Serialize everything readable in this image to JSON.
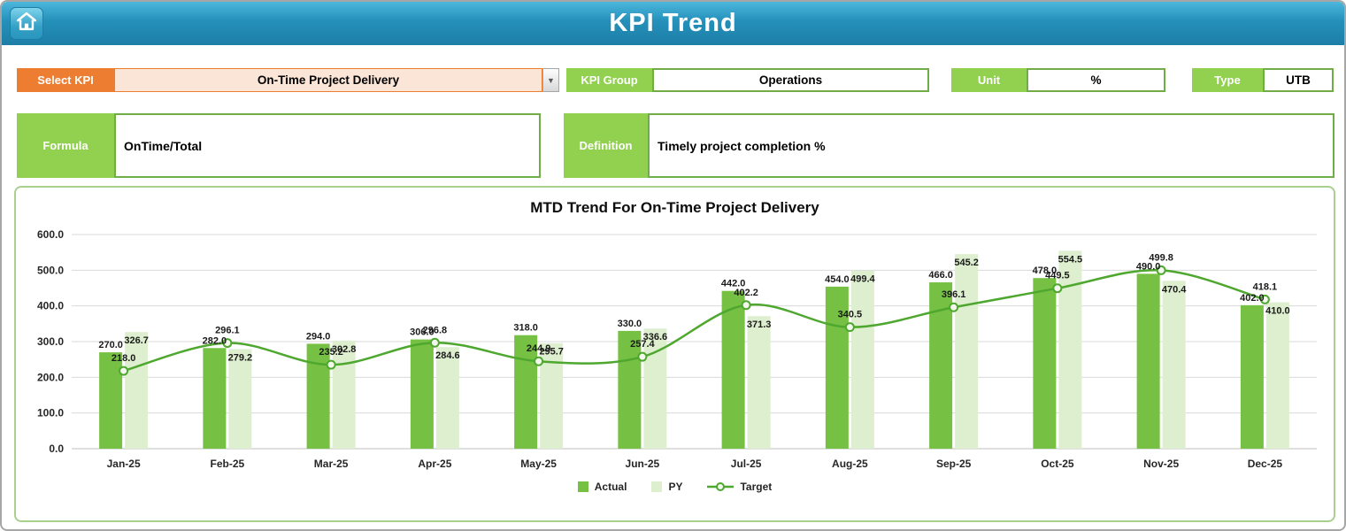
{
  "header": {
    "title": "KPI Trend",
    "home_icon": "house-icon"
  },
  "controls": {
    "select_kpi": {
      "label": "Select KPI",
      "value": "On-Time Project Delivery",
      "dropdown_arrow": "chevron-down-icon"
    },
    "kpi_group": {
      "label": "KPI Group",
      "value": "Operations"
    },
    "unit": {
      "label": "Unit",
      "value": "%"
    },
    "type": {
      "label": "Type",
      "value": "UTB"
    },
    "formula": {
      "label": "Formula",
      "value": "OnTime/Total"
    },
    "definition": {
      "label": "Definition",
      "value": "Timely project completion %"
    }
  },
  "colors": {
    "header_blue": "#2490ba",
    "accent_orange": "#ed7d31",
    "label_green": "#92d050",
    "border_green": "#70ad47",
    "chart_border_green": "#a9d08e"
  },
  "chart_data": {
    "type": "combo-bar-line",
    "title": "MTD Trend For On-Time Project Delivery",
    "categories": [
      "Jan-25",
      "Feb-25",
      "Mar-25",
      "Apr-25",
      "May-25",
      "Jun-25",
      "Jul-25",
      "Aug-25",
      "Sep-25",
      "Oct-25",
      "Nov-25",
      "Dec-25"
    ],
    "series": [
      {
        "name": "Actual",
        "kind": "bar",
        "color": "#76c043",
        "values": [
          270.0,
          282.0,
          294.0,
          306.0,
          318.0,
          330.0,
          442.0,
          454.0,
          466.0,
          478.0,
          490.0,
          402.0
        ]
      },
      {
        "name": "PY",
        "kind": "bar",
        "color": "#ddefcf",
        "values": [
          326.7,
          279.2,
          302.8,
          284.6,
          295.7,
          336.6,
          371.3,
          499.4,
          545.2,
          554.5,
          470.4,
          410.0
        ]
      },
      {
        "name": "Target",
        "kind": "line",
        "color": "#4ea72e",
        "marker_fill": "#f2f8ec",
        "values": [
          218.0,
          296.1,
          235.2,
          296.8,
          244.9,
          257.4,
          402.2,
          340.5,
          396.1,
          449.5,
          499.8,
          418.1
        ]
      }
    ],
    "ylim": [
      0,
      600
    ],
    "ytick_step": 100,
    "grid": true,
    "legend_position": "bottom",
    "label_format": "0.1f"
  }
}
